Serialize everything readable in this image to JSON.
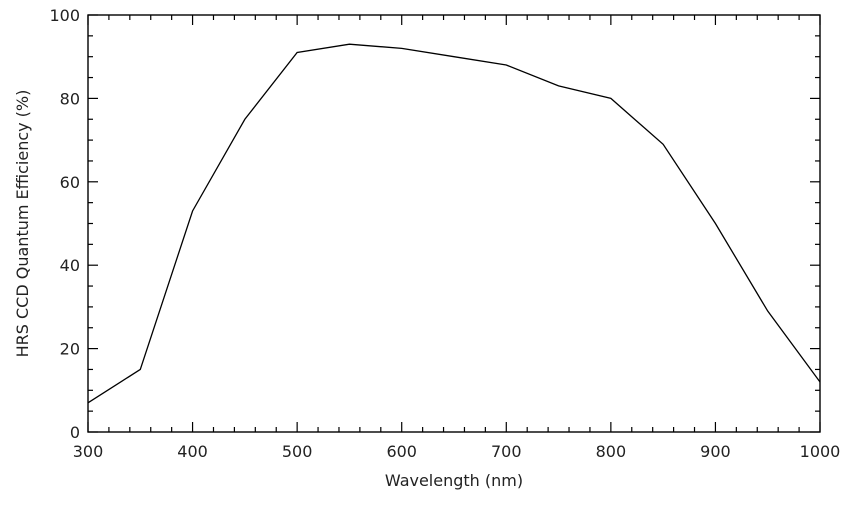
{
  "chart_data": {
    "type": "line",
    "title": "",
    "xlabel": "Wavelength (nm)",
    "ylabel": "HRS CCD Quantum Efficiency (%)",
    "xlim": [
      300,
      1000
    ],
    "ylim": [
      0,
      100
    ],
    "x_ticks": [
      300,
      400,
      500,
      600,
      700,
      800,
      900,
      1000
    ],
    "y_ticks": [
      0,
      20,
      40,
      60,
      80,
      100
    ],
    "x_minor_step": 20,
    "y_minor_step": 5,
    "grid": false,
    "line_color": "#000000",
    "series": [
      {
        "x": [
          300,
          350,
          400,
          450,
          500,
          550,
          600,
          650,
          700,
          750,
          800,
          850,
          900,
          950,
          1000
        ],
        "values": [
          7,
          15,
          53,
          75,
          91,
          93,
          92,
          90,
          88,
          83,
          80,
          69,
          50,
          29,
          12
        ]
      }
    ]
  }
}
